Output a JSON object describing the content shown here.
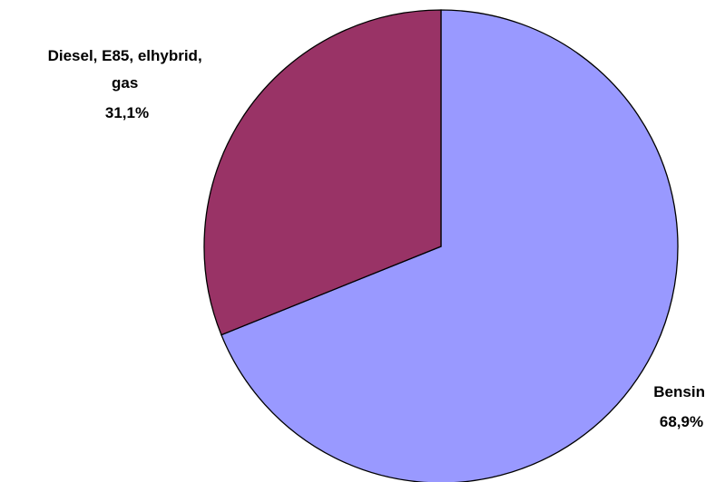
{
  "chart_data": {
    "type": "pie",
    "title": "",
    "start_angle_deg": 0,
    "direction": "clockwise",
    "legend": "none",
    "slices": [
      {
        "label_lines": [
          "Bensin"
        ],
        "value": 68.9,
        "value_label": "68,9%",
        "color": "#9999FF"
      },
      {
        "label_lines": [
          "Diesel, E85, elhybrid,",
          "gas"
        ],
        "value": 31.1,
        "value_label": "31,1%",
        "color": "#993366"
      }
    ],
    "stroke_color": "#000000"
  }
}
